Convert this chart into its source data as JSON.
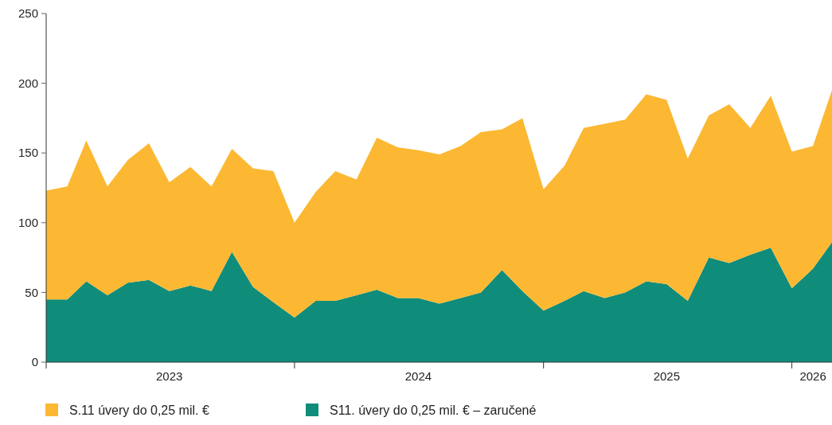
{
  "chart_data": {
    "type": "area",
    "stacked": true,
    "x": [
      "2023-01",
      "2023-02",
      "2023-03",
      "2023-04",
      "2023-05",
      "2023-06",
      "2023-07",
      "2023-08",
      "2023-09",
      "2023-10",
      "2023-11",
      "2023-12",
      "2024-01",
      "2024-02",
      "2024-03",
      "2024-04",
      "2024-05",
      "2024-06",
      "2024-07",
      "2024-08",
      "2024-09",
      "2024-10",
      "2024-11",
      "2024-12",
      "2025-01",
      "2025-02",
      "2025-03",
      "2025-04",
      "2025-05",
      "2025-06",
      "2025-07",
      "2025-08",
      "2025-09",
      "2025-10",
      "2025-11",
      "2025-12",
      "2026-01",
      "2026-02",
      "2026-03"
    ],
    "series": [
      {
        "name": "S11. úvery do 0,25 mil. € – zaručené",
        "color": "#108c7a",
        "values": [
          45,
          45,
          58,
          48,
          57,
          59,
          51,
          55,
          51,
          79,
          54,
          43,
          32,
          44,
          44,
          48,
          52,
          46,
          46,
          42,
          46,
          50,
          66,
          51,
          37,
          44,
          51,
          46,
          50,
          58,
          56,
          44,
          75,
          71,
          77,
          82,
          53,
          67,
          86
        ]
      },
      {
        "name": "S.11 úvery do 0,25 mil. €",
        "color": "#fcb833",
        "values": [
          78,
          81,
          101,
          78,
          88,
          98,
          78,
          85,
          75,
          74,
          85,
          94,
          68,
          78,
          93,
          83,
          109,
          108,
          106,
          107,
          109,
          115,
          101,
          124,
          87,
          97,
          117,
          125,
          124,
          134,
          132,
          102,
          102,
          114,
          91,
          109,
          98,
          88,
          109
        ]
      }
    ],
    "xlim": [
      "2023-01",
      "2026-03"
    ],
    "xticks": [
      {
        "value": "2023-01",
        "label": null
      },
      {
        "value": "2023-07",
        "label": "2023"
      },
      {
        "value": "2024-01",
        "label": null
      },
      {
        "value": "2024-07",
        "label": "2024"
      },
      {
        "value": "2025-01",
        "label": null
      },
      {
        "value": "2025-07",
        "label": "2025"
      },
      {
        "value": "2026-01",
        "label": null
      },
      {
        "value": "2026-02",
        "label": "2026"
      }
    ],
    "ylim": [
      0,
      250
    ],
    "yticks": [
      0,
      50,
      100,
      150,
      200,
      250
    ],
    "legend": "bottom"
  }
}
